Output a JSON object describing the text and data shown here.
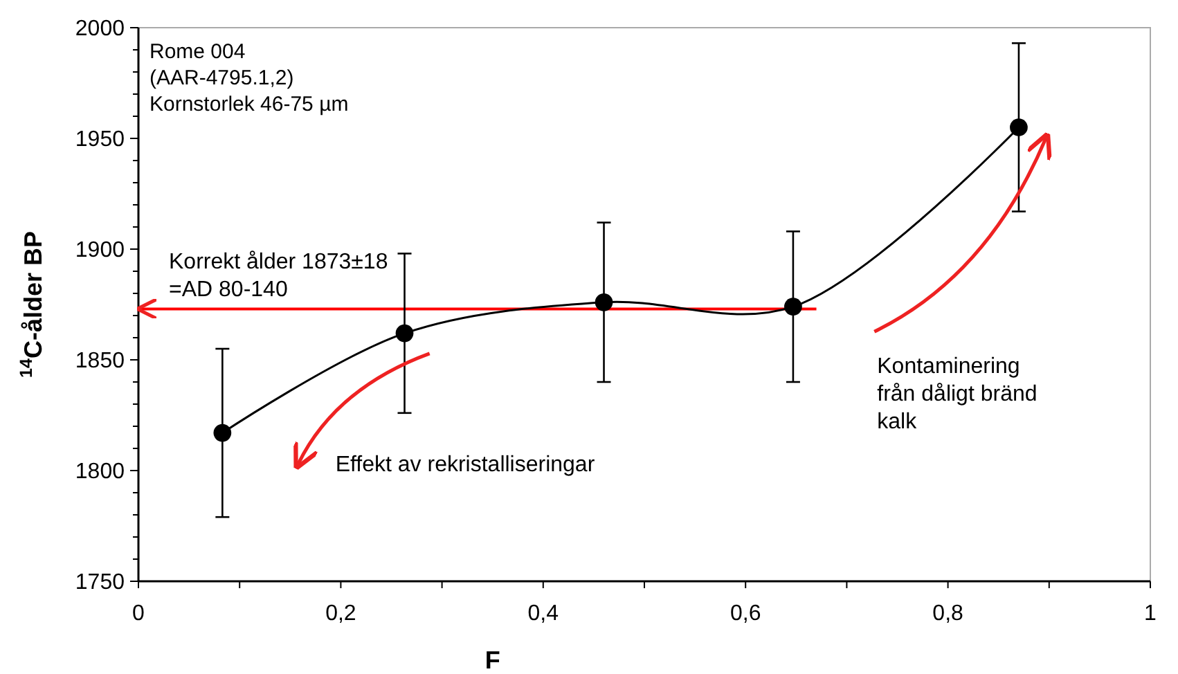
{
  "chart_data": {
    "type": "line",
    "xlabel": "F",
    "ylabel": "$^{14}$C-ålder BP",
    "x": [
      0.083,
      0.263,
      0.46,
      0.647,
      0.87
    ],
    "series": [
      {
        "color": "#000000",
        "values": [
          1817,
          1862,
          1876,
          1874,
          1955
        ],
        "errors": [
          38,
          36,
          36,
          34,
          38
        ]
      }
    ],
    "marker": "circle",
    "xlim": [
      0,
      1
    ],
    "xticks": [
      0,
      {
        "value": 0.1,
        "label": null
      },
      {
        "value": 0.2,
        "label": "0,2"
      },
      {
        "value": 0.3,
        "label": null
      },
      {
        "value": 0.4,
        "label": "0,4"
      },
      {
        "value": 0.5,
        "label": null
      },
      {
        "value": 0.6,
        "label": "0,6"
      },
      {
        "value": 0.7,
        "label": null
      },
      {
        "value": 0.8,
        "label": "0,8"
      },
      {
        "value": 0.9,
        "label": null
      },
      1
    ],
    "ylim": [
      1750,
      2000
    ],
    "yticks": [
      1750,
      {
        "value": 1760,
        "label": null
      },
      {
        "value": 1770,
        "label": null
      },
      {
        "value": 1780,
        "label": null
      },
      {
        "value": 1790,
        "label": null
      },
      1800,
      {
        "value": 1810,
        "label": null
      },
      {
        "value": 1820,
        "label": null
      },
      {
        "value": 1830,
        "label": null
      },
      {
        "value": 1840,
        "label": null
      },
      1850,
      {
        "value": 1860,
        "label": null
      },
      {
        "value": 1870,
        "label": null
      },
      {
        "value": 1880,
        "label": null
      },
      {
        "value": 1890,
        "label": null
      },
      1900,
      {
        "value": 1910,
        "label": null
      },
      {
        "value": 1920,
        "label": null
      },
      {
        "value": 1930,
        "label": null
      },
      {
        "value": 1940,
        "label": null
      },
      1950,
      {
        "value": 1960,
        "label": null
      },
      {
        "value": 1970,
        "label": null
      },
      {
        "value": 1980,
        "label": null
      },
      {
        "value": 1990,
        "label": null
      },
      2000
    ],
    "ref_lines": [
      {
        "axis": "y",
        "value": 1873,
        "color": "#ff0000",
        "label": "Korrekt ålder 1873±18\n=AD 80-140"
      }
    ],
    "annotations": [
      "Rome 004\n(AAR-4795.1,2)\nKornstorlek 46-75  µm",
      "Effekt av rekristalliseringar",
      "Kontaminering\nfrån dåligt bränd\nkalk"
    ]
  }
}
